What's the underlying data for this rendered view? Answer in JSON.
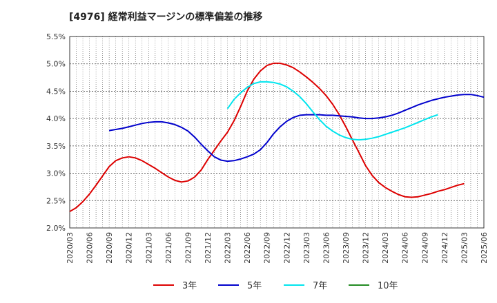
{
  "title": "[4976]  経常利益マージンの標準偏差の推移",
  "chart_data": {
    "type": "line",
    "title": "[4976]  経常利益マージンの標準偏差の推移",
    "xlabel": "",
    "ylabel": "",
    "ylim": [
      2.0,
      5.5
    ],
    "y_ticks": [
      "2.0%",
      "2.5%",
      "3.0%",
      "3.5%",
      "4.0%",
      "4.5%",
      "5.0%",
      "5.5%"
    ],
    "x_ticks": [
      "2020/03",
      "2020/06",
      "2020/09",
      "2020/12",
      "2021/03",
      "2021/06",
      "2021/09",
      "2021/12",
      "2022/03",
      "2022/06",
      "2022/09",
      "2022/12",
      "2023/03",
      "2023/06",
      "2023/09",
      "2023/12",
      "2024/03",
      "2024/06",
      "2024/09",
      "2024/12",
      "2025/03",
      "2025/06"
    ],
    "grid": true,
    "legend_position": "bottom",
    "series": [
      {
        "name": "3年",
        "color": "#dd0000",
        "points": [
          [
            "2020/03",
            2.3
          ],
          [
            "2020/04",
            2.37
          ],
          [
            "2020/05",
            2.48
          ],
          [
            "2020/06",
            2.62
          ],
          [
            "2020/07",
            2.78
          ],
          [
            "2020/08",
            2.95
          ],
          [
            "2020/09",
            3.12
          ],
          [
            "2020/10",
            3.23
          ],
          [
            "2020/11",
            3.28
          ],
          [
            "2020/12",
            3.3
          ],
          [
            "2021/01",
            3.28
          ],
          [
            "2021/02",
            3.23
          ],
          [
            "2021/03",
            3.16
          ],
          [
            "2021/04",
            3.09
          ],
          [
            "2021/05",
            3.01
          ],
          [
            "2021/06",
            2.93
          ],
          [
            "2021/07",
            2.87
          ],
          [
            "2021/08",
            2.84
          ],
          [
            "2021/09",
            2.86
          ],
          [
            "2021/10",
            2.93
          ],
          [
            "2021/11",
            3.06
          ],
          [
            "2021/12",
            3.25
          ],
          [
            "2022/01",
            3.42
          ],
          [
            "2022/02",
            3.59
          ],
          [
            "2022/03",
            3.75
          ],
          [
            "2022/04",
            3.96
          ],
          [
            "2022/05",
            4.22
          ],
          [
            "2022/06",
            4.5
          ],
          [
            "2022/07",
            4.72
          ],
          [
            "2022/08",
            4.87
          ],
          [
            "2022/09",
            4.97
          ],
          [
            "2022/10",
            5.01
          ],
          [
            "2022/11",
            5.01
          ],
          [
            "2022/12",
            4.98
          ],
          [
            "2023/01",
            4.93
          ],
          [
            "2023/02",
            4.85
          ],
          [
            "2023/03",
            4.76
          ],
          [
            "2023/04",
            4.66
          ],
          [
            "2023/05",
            4.55
          ],
          [
            "2023/06",
            4.42
          ],
          [
            "2023/07",
            4.26
          ],
          [
            "2023/08",
            4.07
          ],
          [
            "2023/09",
            3.85
          ],
          [
            "2023/10",
            3.61
          ],
          [
            "2023/11",
            3.38
          ],
          [
            "2023/12",
            3.14
          ],
          [
            "2024/01",
            2.96
          ],
          [
            "2024/02",
            2.83
          ],
          [
            "2024/03",
            2.74
          ],
          [
            "2024/04",
            2.67
          ],
          [
            "2024/05",
            2.61
          ],
          [
            "2024/06",
            2.57
          ],
          [
            "2024/07",
            2.56
          ],
          [
            "2024/08",
            2.57
          ],
          [
            "2024/09",
            2.6
          ],
          [
            "2024/10",
            2.63
          ],
          [
            "2024/11",
            2.67
          ],
          [
            "2024/12",
            2.7
          ],
          [
            "2025/01",
            2.74
          ],
          [
            "2025/02",
            2.78
          ],
          [
            "2025/03",
            2.81
          ]
        ]
      },
      {
        "name": "5年",
        "color": "#0000cc",
        "points": [
          [
            "2020/09",
            3.78
          ],
          [
            "2020/10",
            3.8
          ],
          [
            "2020/11",
            3.82
          ],
          [
            "2020/12",
            3.85
          ],
          [
            "2021/01",
            3.88
          ],
          [
            "2021/02",
            3.91
          ],
          [
            "2021/03",
            3.93
          ],
          [
            "2021/04",
            3.94
          ],
          [
            "2021/05",
            3.94
          ],
          [
            "2021/06",
            3.92
          ],
          [
            "2021/07",
            3.89
          ],
          [
            "2021/08",
            3.84
          ],
          [
            "2021/09",
            3.77
          ],
          [
            "2021/10",
            3.66
          ],
          [
            "2021/11",
            3.53
          ],
          [
            "2021/12",
            3.41
          ],
          [
            "2022/01",
            3.3
          ],
          [
            "2022/02",
            3.24
          ],
          [
            "2022/03",
            3.22
          ],
          [
            "2022/04",
            3.23
          ],
          [
            "2022/05",
            3.26
          ],
          [
            "2022/06",
            3.3
          ],
          [
            "2022/07",
            3.35
          ],
          [
            "2022/08",
            3.43
          ],
          [
            "2022/09",
            3.56
          ],
          [
            "2022/10",
            3.72
          ],
          [
            "2022/11",
            3.85
          ],
          [
            "2022/12",
            3.95
          ],
          [
            "2023/01",
            4.02
          ],
          [
            "2023/02",
            4.06
          ],
          [
            "2023/03",
            4.07
          ],
          [
            "2023/04",
            4.07
          ],
          [
            "2023/05",
            4.07
          ],
          [
            "2023/06",
            4.06
          ],
          [
            "2023/07",
            4.06
          ],
          [
            "2023/08",
            4.05
          ],
          [
            "2023/09",
            4.04
          ],
          [
            "2023/10",
            4.03
          ],
          [
            "2023/11",
            4.01
          ],
          [
            "2023/12",
            4.0
          ],
          [
            "2024/01",
            4.0
          ],
          [
            "2024/02",
            4.01
          ],
          [
            "2024/03",
            4.03
          ],
          [
            "2024/04",
            4.06
          ],
          [
            "2024/05",
            4.1
          ],
          [
            "2024/06",
            4.15
          ],
          [
            "2024/07",
            4.2
          ],
          [
            "2024/08",
            4.25
          ],
          [
            "2024/09",
            4.29
          ],
          [
            "2024/10",
            4.33
          ],
          [
            "2024/11",
            4.36
          ],
          [
            "2024/12",
            4.39
          ],
          [
            "2025/01",
            4.41
          ],
          [
            "2025/02",
            4.43
          ],
          [
            "2025/03",
            4.44
          ],
          [
            "2025/04",
            4.44
          ],
          [
            "2025/05",
            4.42
          ],
          [
            "2025/06",
            4.39
          ]
        ]
      },
      {
        "name": "7年",
        "color": "#00e5ee",
        "points": [
          [
            "2022/03",
            4.18
          ],
          [
            "2022/04",
            4.35
          ],
          [
            "2022/05",
            4.47
          ],
          [
            "2022/06",
            4.57
          ],
          [
            "2022/07",
            4.64
          ],
          [
            "2022/08",
            4.67
          ],
          [
            "2022/09",
            4.67
          ],
          [
            "2022/10",
            4.66
          ],
          [
            "2022/11",
            4.63
          ],
          [
            "2022/12",
            4.58
          ],
          [
            "2023/01",
            4.5
          ],
          [
            "2023/02",
            4.4
          ],
          [
            "2023/03",
            4.27
          ],
          [
            "2023/04",
            4.12
          ],
          [
            "2023/05",
            3.98
          ],
          [
            "2023/06",
            3.86
          ],
          [
            "2023/07",
            3.77
          ],
          [
            "2023/08",
            3.7
          ],
          [
            "2023/09",
            3.65
          ],
          [
            "2023/10",
            3.62
          ],
          [
            "2023/11",
            3.61
          ],
          [
            "2023/12",
            3.62
          ],
          [
            "2024/01",
            3.64
          ],
          [
            "2024/02",
            3.67
          ],
          [
            "2024/03",
            3.71
          ],
          [
            "2024/04",
            3.75
          ],
          [
            "2024/05",
            3.79
          ],
          [
            "2024/06",
            3.83
          ],
          [
            "2024/07",
            3.88
          ],
          [
            "2024/08",
            3.93
          ],
          [
            "2024/09",
            3.98
          ],
          [
            "2024/10",
            4.03
          ],
          [
            "2024/11",
            4.07
          ]
        ]
      },
      {
        "name": "10年",
        "color": "#228b22",
        "points": []
      }
    ]
  }
}
